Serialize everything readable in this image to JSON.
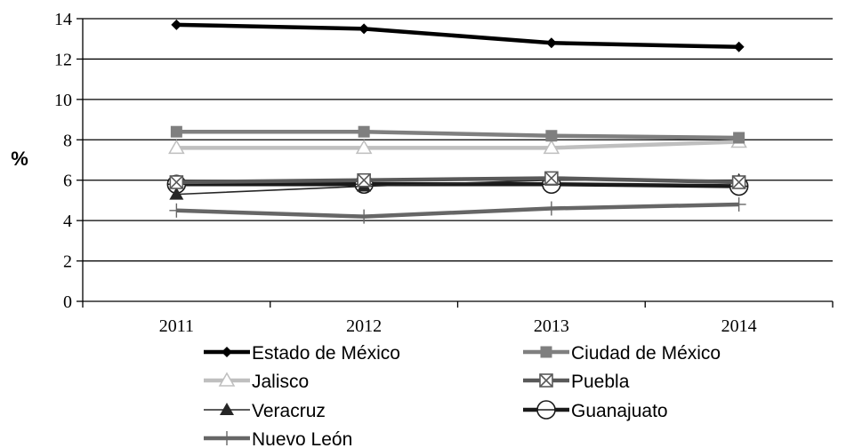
{
  "chart_data": {
    "type": "line",
    "ylabel": "%",
    "xlabel": "",
    "ylim": [
      0,
      14
    ],
    "yticks": [
      "0",
      "2",
      "4",
      "6",
      "8",
      "10",
      "12",
      "14"
    ],
    "categories": [
      "2011",
      "2012",
      "2013",
      "2014"
    ],
    "grid": "horizontal",
    "legend_position": "bottom",
    "series": [
      {
        "name": "Estado de México",
        "values": [
          13.7,
          13.5,
          12.8,
          12.6
        ],
        "color": "#000000",
        "marker": "diamond"
      },
      {
        "name": "Ciudad de México",
        "values": [
          8.4,
          8.4,
          8.2,
          8.1
        ],
        "color": "#7f7f7f",
        "marker": "square"
      },
      {
        "name": "Jalisco",
        "values": [
          7.6,
          7.6,
          7.6,
          7.9
        ],
        "color": "#bfbfbf",
        "marker": "triangle-open"
      },
      {
        "name": "Puebla",
        "values": [
          5.9,
          6.0,
          6.1,
          5.9
        ],
        "color": "#595959",
        "marker": "square-x"
      },
      {
        "name": "Veracruz",
        "values": [
          5.3,
          5.7,
          6.0,
          6.0
        ],
        "color": "#262626",
        "marker": "triangle"
      },
      {
        "name": "Guanajuato",
        "values": [
          5.8,
          5.8,
          5.8,
          5.7
        ],
        "color": "#1a1a1a",
        "marker": "circle-open"
      },
      {
        "name": "Nuevo León",
        "values": [
          4.5,
          4.2,
          4.6,
          4.8
        ],
        "color": "#666666",
        "marker": "plus"
      }
    ]
  }
}
